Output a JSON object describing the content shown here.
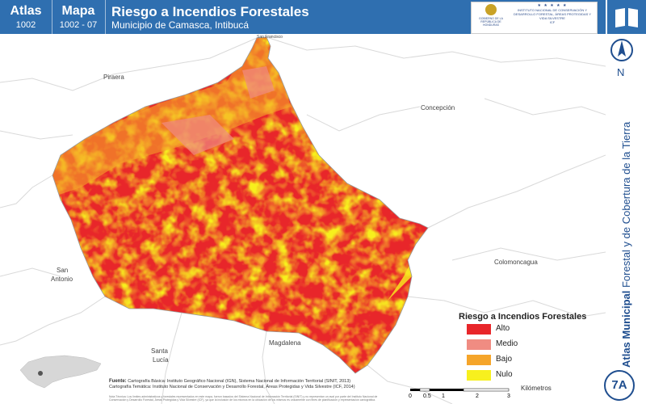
{
  "header": {
    "atlas_label": "Atlas",
    "atlas_number": "1002",
    "map_label": "Mapa",
    "map_number": "1002 - 07",
    "title": "Riesgo a Incendios Forestales",
    "subtitle": "Municipio de Camasca, Intibucá",
    "logo_left_text": "GOBIERNO DE LA REPÚBLICA DE HONDURAS",
    "logo_right_text": "INSTITUTO NACIONAL DE CONSERVACIÓN Y DESARROLLO FORESTAL, ÁREAS PROTEGIDAS Y VIDA SILVESTRE",
    "logo_right_abbr": "ICF",
    "header_color": "#2f6fb0"
  },
  "side": {
    "north_label": "N",
    "vertical_title_bold": "Atlas Municipal",
    "vertical_title_rest": " Forestal y de Cobertura de la Tierra",
    "badge": "7A",
    "book_icon": "book-icon"
  },
  "places": {
    "piraera": "Piraera",
    "concepcion": "Concepción",
    "san_antonio_1": "San",
    "san_antonio_2": "Antonio",
    "colomoncagua": "Colomoncagua",
    "santa_lucia_1": "Santa",
    "santa_lucia_2": "Lucía",
    "magdalena": "Magdalena",
    "san_francisco": "San Francisco"
  },
  "legend": {
    "title": "Riesgo a Incendios Forestales",
    "items": [
      {
        "label": "Alto",
        "color": "#e8262a"
      },
      {
        "label": "Medio",
        "color": "#f08c82"
      },
      {
        "label": "Bajo",
        "color": "#f5a52a"
      },
      {
        "label": "Nulo",
        "color": "#f7f01e"
      }
    ]
  },
  "source": {
    "label": "Fuente:",
    "line1": "Cartografía Básica: Instituto Geográfico Nacional (IGN), Sistema Nacional de Información Territorial (SINIT, 2013)",
    "line2": "Cartografía Temática: Instituto Nacional de Conservación y Desarrollo Forestal, Áreas Protegidas y Vida Silvestre (ICF, 2014)",
    "note": "Nota Técnica: Los límites administrativos y forestales representados en este mapa, fueron basados del Sistema Nacional de Información Territorial (SINIT) y no representan un aval por parte del Instituto Nacional de Conservación y Desarrollo Forestal, Áreas Protegidas y Vida Silvestre (ICF), ya que la inclusión de los mismos en la ubicación de los mismos es únicamente con fines de planificación y representación cartográfica."
  },
  "scale": {
    "unit": "Kilómetros",
    "ticks": [
      "0",
      "0.5",
      "1",
      "2",
      "3"
    ]
  }
}
